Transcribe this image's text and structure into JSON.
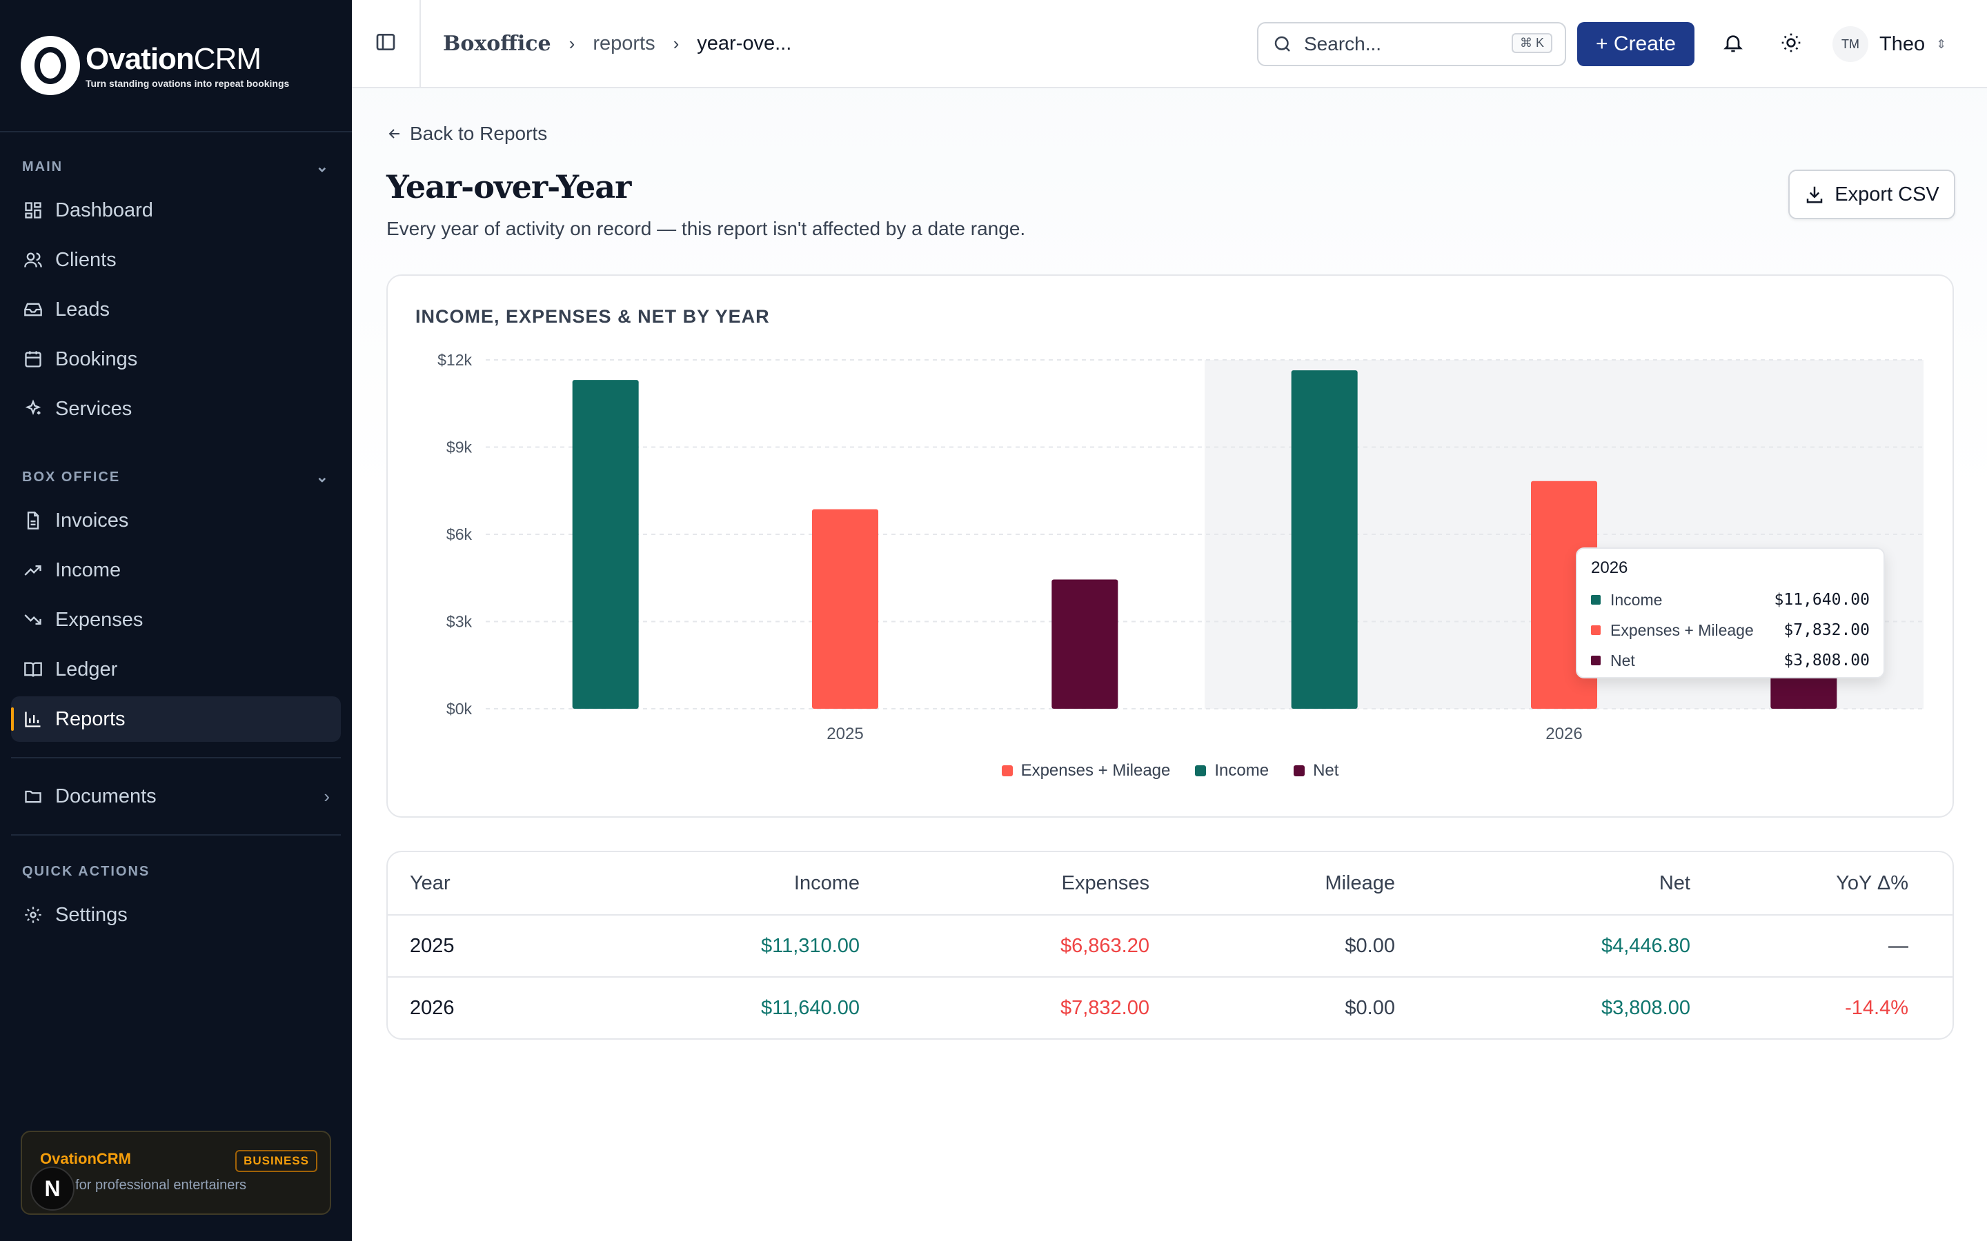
{
  "brand": {
    "name_bold": "Ovation",
    "name_light": "CRM",
    "tagline": "Turn standing ovations into repeat bookings"
  },
  "sidebar": {
    "main_label": "MAIN",
    "main_items": [
      {
        "label": "Dashboard",
        "icon": "dashboard-icon"
      },
      {
        "label": "Clients",
        "icon": "users-icon"
      },
      {
        "label": "Leads",
        "icon": "inbox-icon"
      },
      {
        "label": "Bookings",
        "icon": "calendar-icon"
      },
      {
        "label": "Services",
        "icon": "sparkles-icon"
      }
    ],
    "box_office_label": "BOX OFFICE",
    "box_office_items": [
      {
        "label": "Invoices",
        "icon": "file-icon"
      },
      {
        "label": "Income",
        "icon": "trending-up-icon"
      },
      {
        "label": "Expenses",
        "icon": "trending-down-icon"
      },
      {
        "label": "Ledger",
        "icon": "book-icon"
      },
      {
        "label": "Reports",
        "icon": "bar-chart-icon",
        "active": true
      }
    ],
    "documents_label": "Documents",
    "quick_actions_label": "QUICK ACTIONS",
    "settings_label": "Settings",
    "plan": {
      "name": "OvationCRM",
      "badge": "BUSINESS",
      "desc": "CRM for professional entertainers"
    },
    "n_badge": "N"
  },
  "topbar": {
    "breadcrumb_root": "Boxoffice",
    "breadcrumb_mid": "reports",
    "breadcrumb_current": "year-ove...",
    "search_placeholder": "Search...",
    "search_kbd": "⌘ K",
    "create_label": "+ Create",
    "user_initials": "TM",
    "user_name": "Theo"
  },
  "page": {
    "back_label": "Back to Reports",
    "title": "Year-over-Year",
    "subtitle": "Every year of activity on record — this report isn't affected by a date range.",
    "export_label": "Export CSV"
  },
  "chart_data": {
    "type": "bar",
    "title": "INCOME, EXPENSES & NET BY YEAR",
    "categories": [
      "2025",
      "2026"
    ],
    "series": [
      {
        "name": "Income",
        "color": "#0f6b62",
        "values": [
          11310.0,
          11640.0
        ]
      },
      {
        "name": "Expenses + Mileage",
        "color": "#ff5a4e",
        "values": [
          6863.2,
          7832.0
        ]
      },
      {
        "name": "Net",
        "color": "#5c0a35",
        "values": [
          4446.8,
          3808.0
        ]
      }
    ],
    "y_ticks": [
      "$0k",
      "$3k",
      "$6k",
      "$9k",
      "$12k"
    ],
    "ylim": [
      0,
      12000
    ],
    "grid": true,
    "legend_position": "bottom",
    "legend_order": [
      "Expenses + Mileage",
      "Income",
      "Net"
    ],
    "highlighted_category": "2026",
    "tooltip": {
      "year": "2026",
      "rows": [
        {
          "label": "Income",
          "value": "$11,640.00",
          "color": "#0f6b62"
        },
        {
          "label": "Expenses + Mileage",
          "value": "$7,832.00",
          "color": "#ff5a4e"
        },
        {
          "label": "Net",
          "value": "$3,808.00",
          "color": "#5c0a35"
        }
      ]
    }
  },
  "table": {
    "headers": [
      "Year",
      "Income",
      "Expenses",
      "Mileage",
      "Net",
      "YoY Δ%"
    ],
    "rows": [
      {
        "year": "2025",
        "income": "$11,310.00",
        "expenses": "$6,863.20",
        "mileage": "$0.00",
        "net": "$4,446.80",
        "yoy": "—"
      },
      {
        "year": "2026",
        "income": "$11,640.00",
        "expenses": "$7,832.00",
        "mileage": "$0.00",
        "net": "$3,808.00",
        "yoy": "-14.4%"
      }
    ]
  }
}
